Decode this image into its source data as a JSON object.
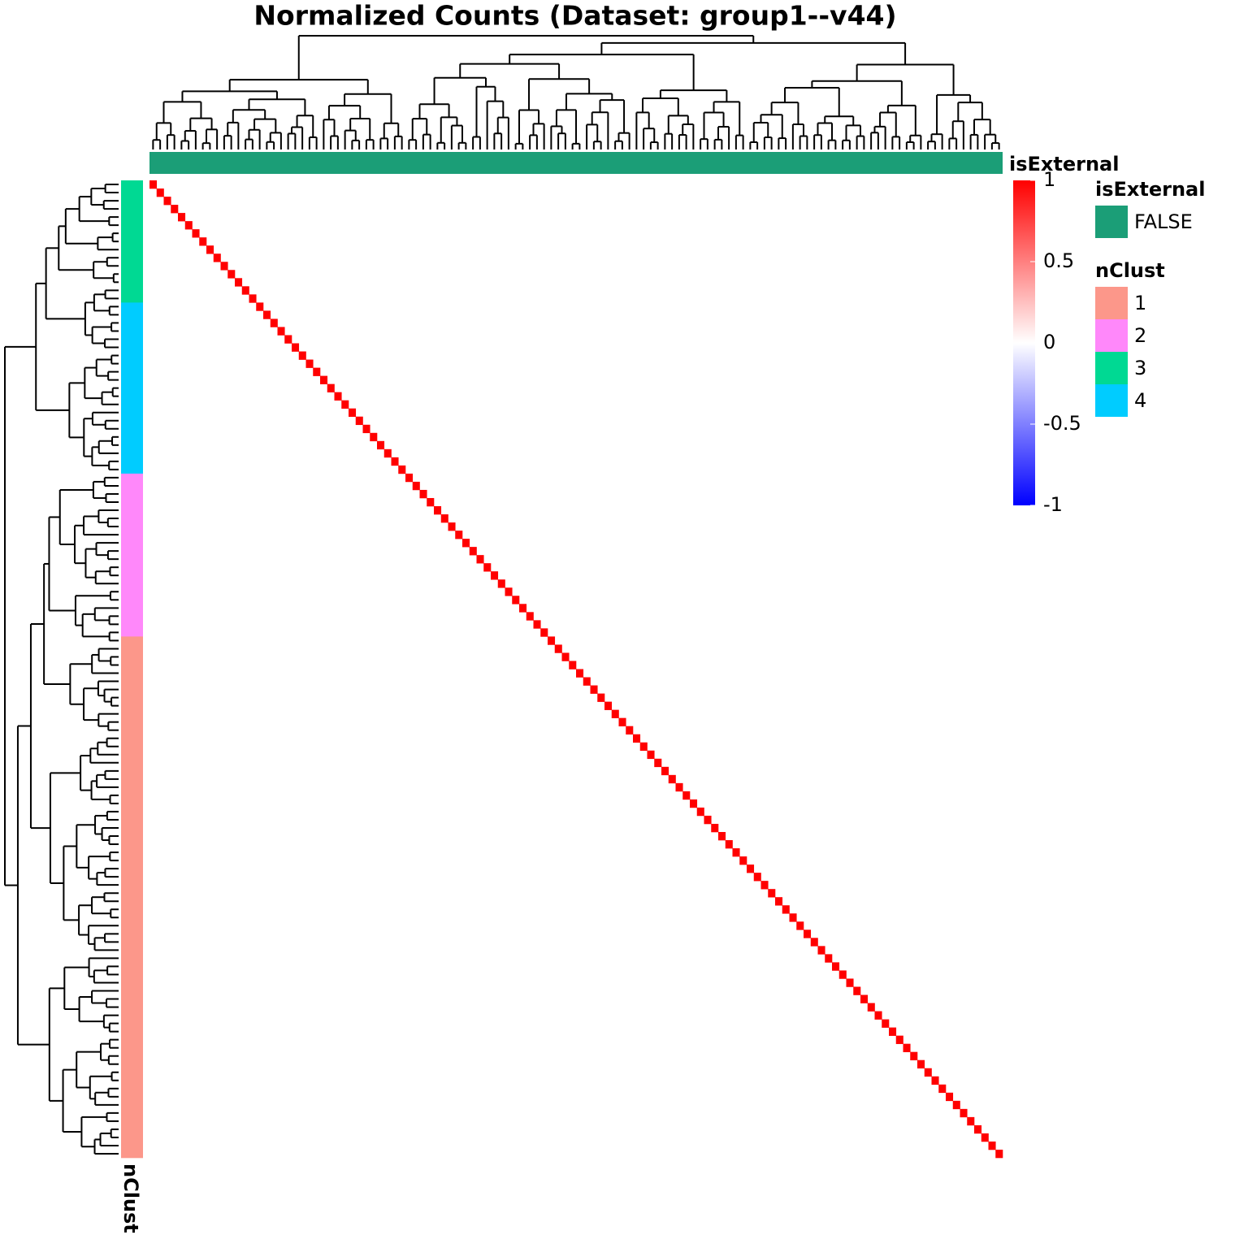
{
  "chart_data": {
    "type": "heatmap",
    "title": "Normalized Counts (Dataset: group1--v44)",
    "diagonal": [
      1,
      1,
      1,
      1,
      1,
      1,
      1,
      1,
      1,
      1,
      1,
      1,
      1,
      1,
      1,
      1,
      1,
      1,
      1,
      1,
      1,
      1,
      1,
      1,
      1,
      1,
      1,
      1,
      1,
      1,
      1,
      1,
      1,
      1,
      1,
      1,
      1,
      1,
      1,
      1,
      1,
      1,
      1,
      1,
      1,
      1,
      1,
      1,
      1,
      1,
      1,
      1,
      1,
      1,
      1,
      1,
      1,
      1,
      1,
      1,
      1,
      1,
      1,
      1,
      1,
      1,
      1,
      1,
      1,
      1,
      1,
      1,
      1,
      1,
      1,
      1,
      1,
      1,
      1,
      1,
      1,
      1,
      1,
      1,
      1,
      1,
      1,
      1,
      1,
      1,
      1,
      1,
      1,
      1,
      1,
      1,
      1,
      1,
      1,
      1,
      1,
      1,
      1,
      1,
      1,
      1,
      1,
      1,
      1,
      1,
      1,
      1,
      1,
      1,
      1,
      1,
      1,
      1,
      1,
      1
    ],
    "off_diagonal": 0,
    "colorbar": {
      "lim": [
        -1,
        1
      ],
      "ticks": [
        1,
        0.5,
        0,
        -0.5,
        -1
      ],
      "colors": [
        "#0000FF",
        "#FFFFFF",
        "#FF0000"
      ]
    },
    "col_annotation": {
      "name": "isExternal",
      "legend_title": "isExternal",
      "label": "FALSE",
      "color": "#1B9E77"
    },
    "row_annotation": {
      "name": "nClust",
      "legend_title": "nClust",
      "legend": [
        {
          "label": "1",
          "color": "#FC978A"
        },
        {
          "label": "2",
          "color": "#FF88FA"
        },
        {
          "label": "3",
          "color": "#00D993"
        },
        {
          "label": "4",
          "color": "#00CCFF"
        }
      ],
      "segments": [
        {
          "cluster": "3",
          "count": 15
        },
        {
          "cluster": "4",
          "count": 21
        },
        {
          "cluster": "2",
          "count": 20
        },
        {
          "cluster": "1",
          "count": 64
        }
      ]
    }
  }
}
